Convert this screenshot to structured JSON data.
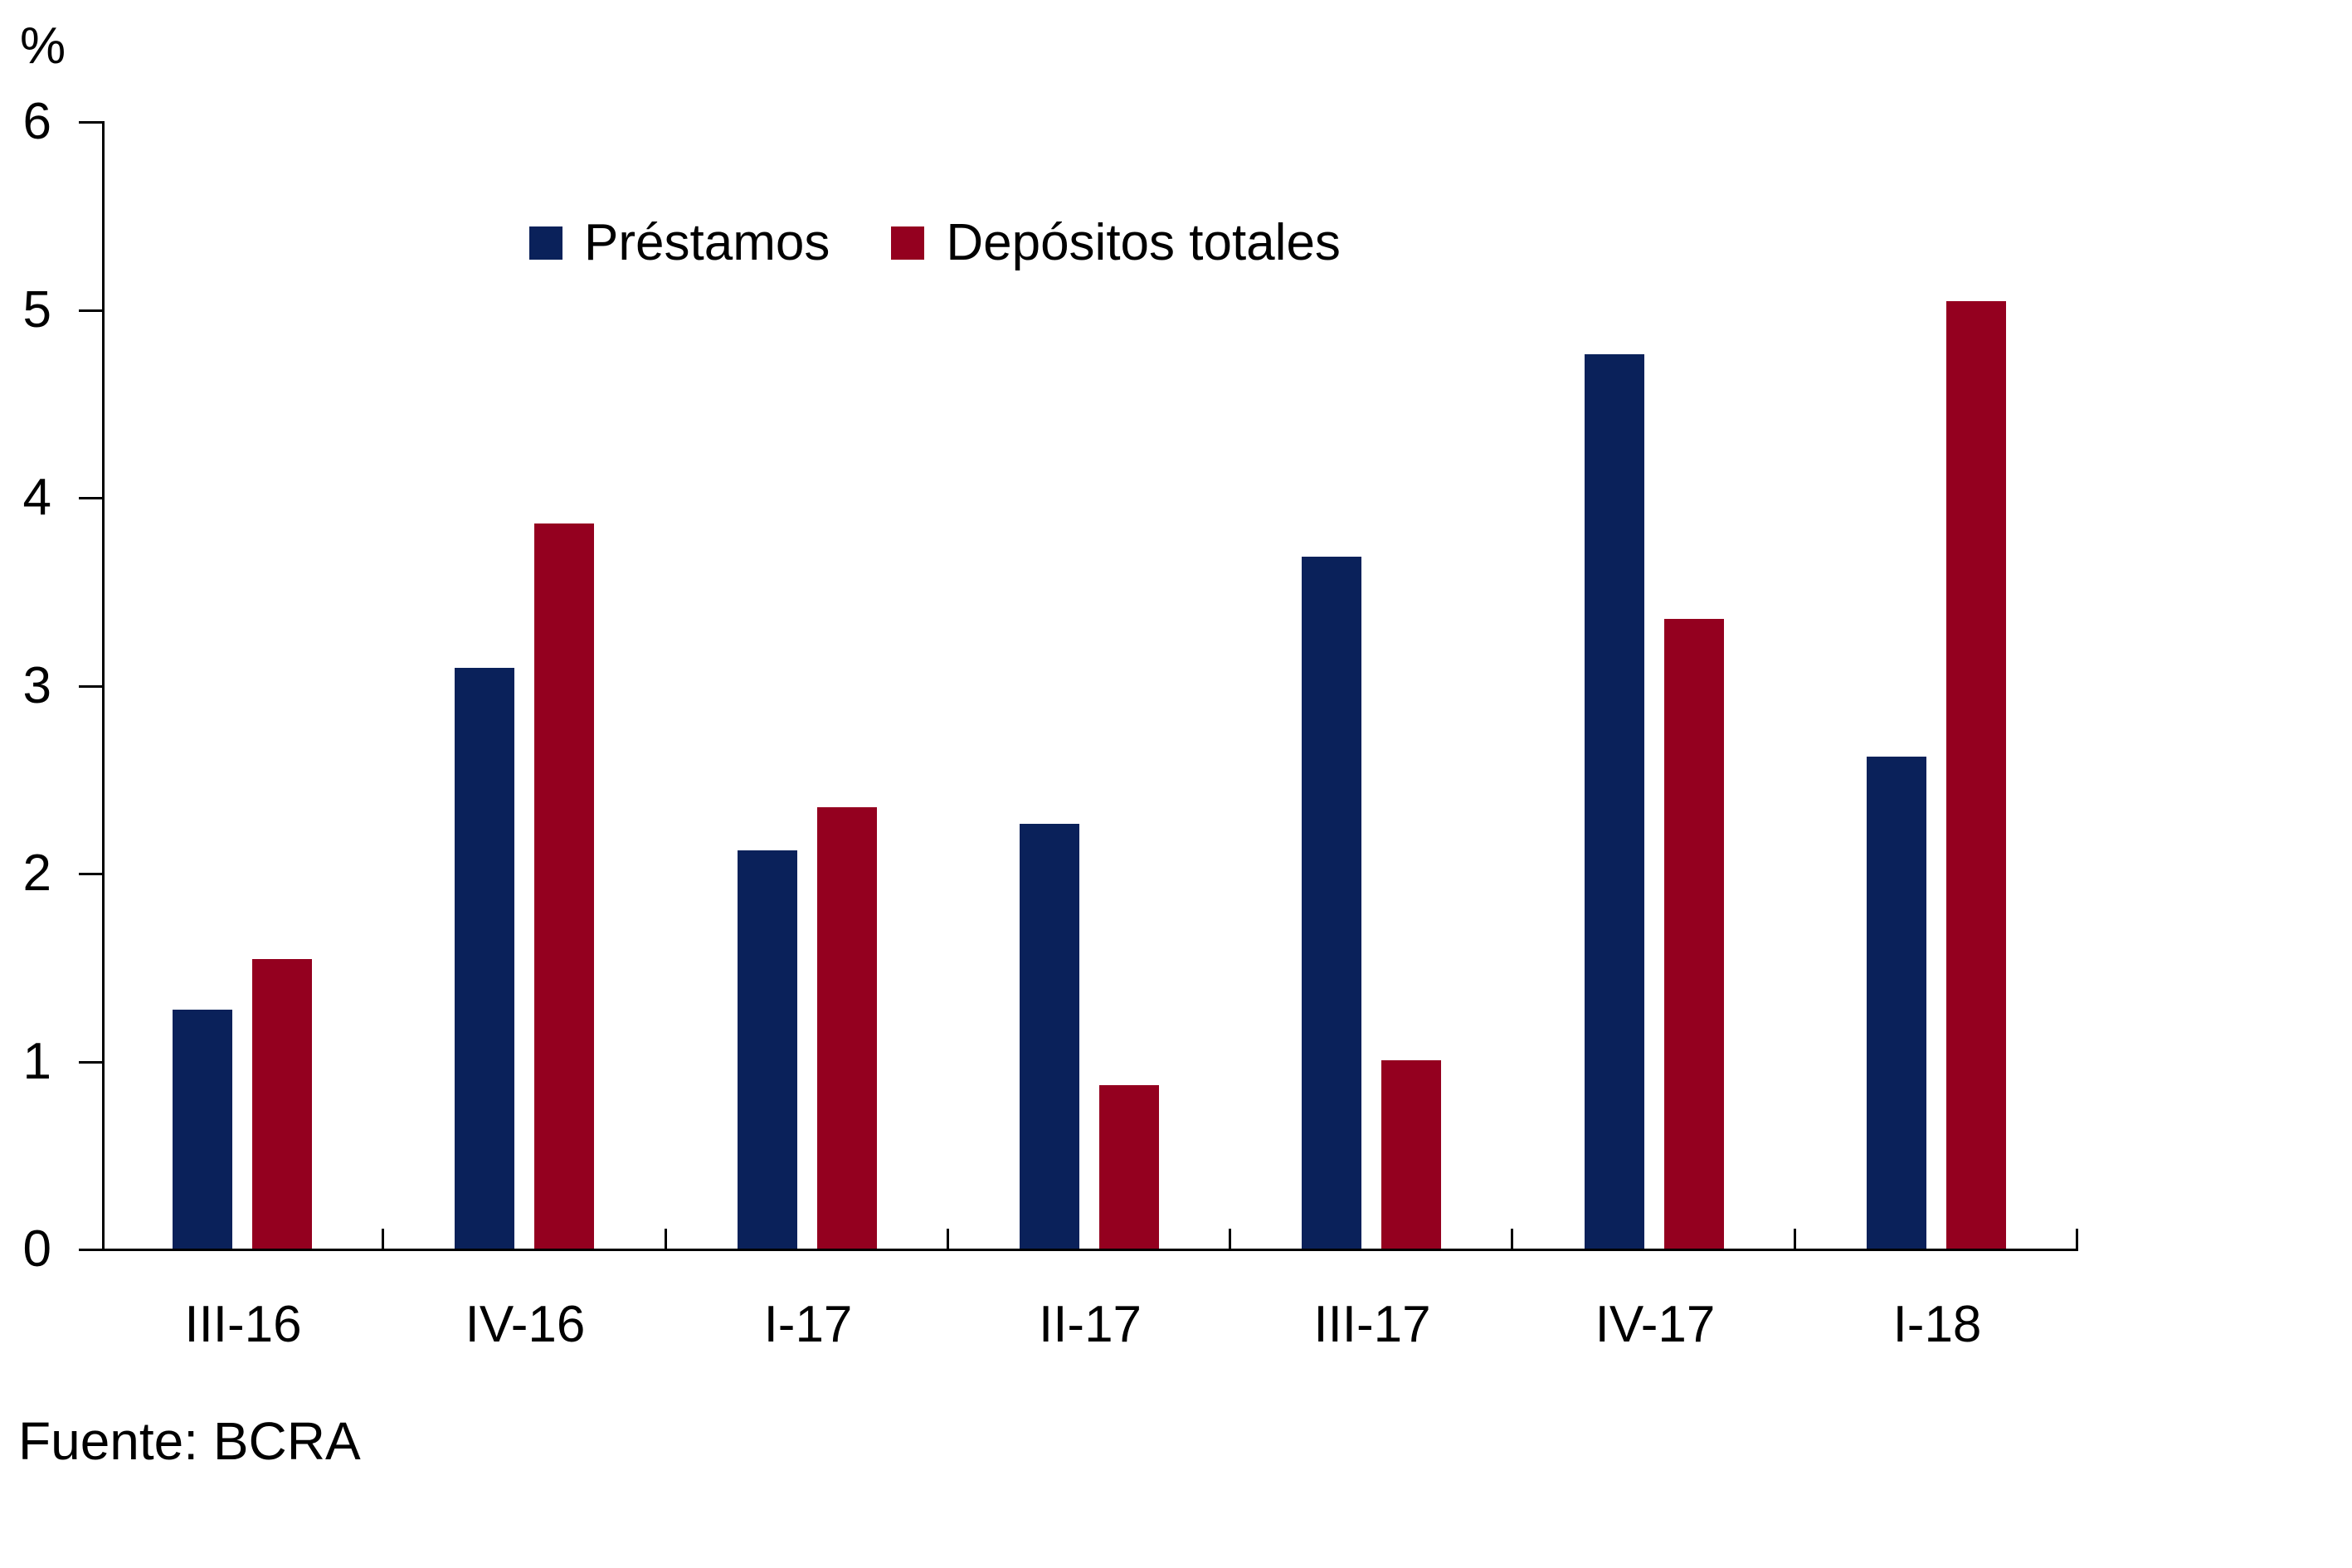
{
  "chart_data": {
    "type": "bar",
    "title": "",
    "xlabel": "",
    "ylabel": "%",
    "categories": [
      "III-16",
      "IV-16",
      "I-17",
      "II-17",
      "III-17",
      "IV-17",
      "I-18"
    ],
    "series": [
      {
        "name": "Préstamos",
        "color": "#0A215A",
        "values": [
          1.27,
          3.09,
          2.12,
          2.26,
          3.68,
          4.76,
          2.62
        ]
      },
      {
        "name": "Depósitos totales",
        "color": "#94001F",
        "values": [
          1.54,
          3.86,
          2.35,
          0.87,
          1.0,
          3.35,
          5.04
        ]
      }
    ],
    "ylim": [
      0,
      6
    ],
    "yticks": [
      0,
      1,
      2,
      3,
      4,
      5,
      6
    ],
    "grid": false,
    "legend_position": "top-center",
    "axis_color": "#000000"
  },
  "source_note": "Fuente: BCRA"
}
